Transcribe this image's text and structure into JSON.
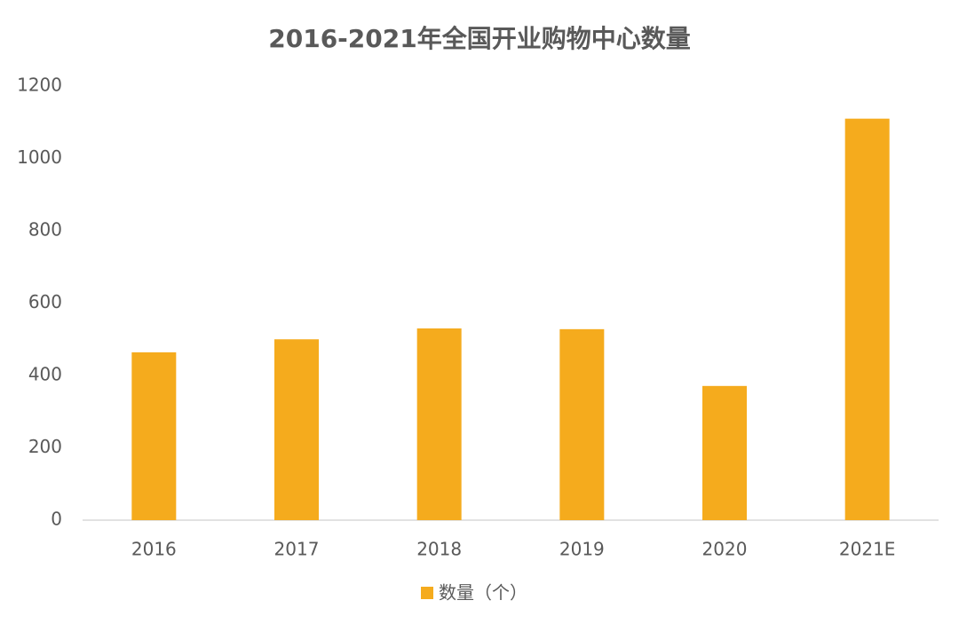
{
  "chart_data": {
    "type": "bar",
    "title": "2016-2021年全国开业购物中心数量",
    "categories": [
      "2016",
      "2017",
      "2018",
      "2019",
      "2020",
      "2021E"
    ],
    "series": [
      {
        "name": "数量（个）",
        "color": "#f5ab1d",
        "values": [
          464,
          500,
          530,
          528,
          371,
          1110
        ]
      }
    ],
    "ylim": [
      0,
      1200
    ],
    "yticks": [
      0,
      200,
      400,
      600,
      800,
      1000,
      1200
    ],
    "grid": false,
    "legend": "bottom"
  }
}
